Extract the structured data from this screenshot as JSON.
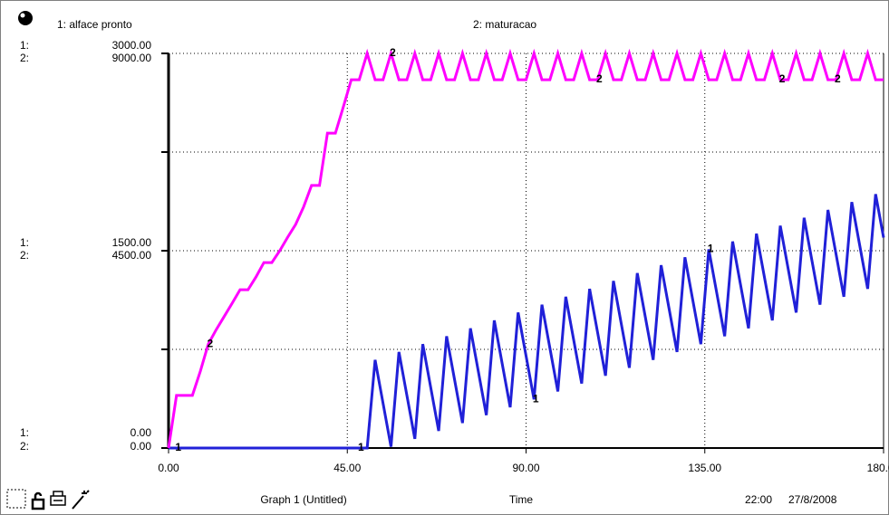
{
  "chart_data": {
    "type": "line",
    "x": [
      0,
      2,
      4,
      6,
      8,
      10,
      12,
      14,
      16,
      18,
      20,
      22,
      24,
      26,
      28,
      30,
      32,
      34,
      36,
      38,
      40,
      42,
      44,
      46,
      48,
      50,
      52,
      54,
      56,
      58,
      60,
      62,
      64,
      66,
      68,
      70,
      72,
      74,
      76,
      78,
      80,
      82,
      84,
      86,
      88,
      90,
      92,
      94,
      96,
      98,
      100,
      102,
      104,
      106,
      108,
      110,
      112,
      114,
      116,
      118,
      120,
      122,
      124,
      126,
      128,
      130,
      132,
      134,
      136,
      138,
      140,
      142,
      144,
      146,
      148,
      150,
      152,
      154,
      156,
      158,
      160,
      162,
      164,
      166,
      168,
      170,
      172,
      174,
      176,
      178,
      180
    ],
    "series": [
      {
        "name": "1: alface pronto",
        "marker": "1",
        "color": "#2020d8",
        "axis": "y",
        "values": [
          0,
          0,
          0,
          0,
          0,
          0,
          0,
          0,
          0,
          0,
          0,
          0,
          0,
          0,
          0,
          0,
          0,
          0,
          0,
          0,
          0,
          0,
          0,
          0,
          0,
          0,
          670,
          340,
          10,
          730,
          400,
          70,
          790,
          460,
          130,
          850,
          520,
          190,
          910,
          580,
          250,
          970,
          640,
          310,
          1030,
          700,
          370,
          1090,
          760,
          430,
          1150,
          820,
          490,
          1210,
          880,
          550,
          1270,
          940,
          610,
          1330,
          1000,
          670,
          1390,
          1060,
          730,
          1450,
          1120,
          790,
          1510,
          1180,
          850,
          1570,
          1240,
          910,
          1630,
          1300,
          970,
          1690,
          1360,
          1030,
          1750,
          1420,
          1090,
          1810,
          1480,
          1150,
          1870,
          1540,
          1210,
          1930,
          1600
        ]
      },
      {
        "name": "2: maturacao",
        "marker": "2",
        "color": "#ff00ff",
        "axis": "y2",
        "values": [
          0,
          1200,
          1200,
          1200,
          1750,
          2370,
          2700,
          3000,
          3300,
          3610,
          3610,
          3900,
          4230,
          4230,
          4500,
          4810,
          5100,
          5500,
          5990,
          5990,
          7180,
          7180,
          7780,
          8400,
          8400,
          9000,
          8400,
          8400,
          9000,
          8400,
          8400,
          9000,
          8400,
          8400,
          9000,
          8400,
          8400,
          9000,
          8400,
          8400,
          9000,
          8400,
          8400,
          9000,
          8400,
          8400,
          9000,
          8400,
          8400,
          9000,
          8400,
          8400,
          9000,
          8400,
          8400,
          9000,
          8400,
          8400,
          9000,
          8400,
          8400,
          9000,
          8400,
          8400,
          9000,
          8400,
          8400,
          9000,
          8400,
          8400,
          9000,
          8400,
          8400,
          9000,
          8400,
          8400,
          9000,
          8400,
          8400,
          9000,
          8400,
          8400,
          9000,
          8400,
          8400,
          9000,
          8400,
          8400,
          9000,
          8400,
          8400
        ]
      }
    ],
    "axis_prefix": "1:",
    "axis2_prefix": "2:",
    "xlim": [
      0,
      180
    ],
    "xticks": [
      {
        "value": 0,
        "label": "0.00"
      },
      {
        "value": 45,
        "label": "45.00"
      },
      {
        "value": 90,
        "label": "90.00"
      },
      {
        "value": 135,
        "label": "135.00"
      },
      {
        "value": 180,
        "label": "180.00"
      }
    ],
    "ylim": [
      0,
      3000
    ],
    "yticks": [
      {
        "value": 0,
        "label": "0.00"
      },
      {
        "value": 1500,
        "label": "1500.00"
      },
      {
        "value": 3000,
        "label": "3000.00"
      }
    ],
    "yminorticks": [
      750,
      2250
    ],
    "y2lim": [
      0,
      9000
    ],
    "y2ticks": [
      {
        "value": 0,
        "label": "0.00"
      },
      {
        "value": 4500,
        "label": "4500.00"
      },
      {
        "value": 9000,
        "label": "9000.00"
      }
    ],
    "grid": true,
    "footer": {
      "graph": "Graph 1 (Untitled)",
      "xlabel": "Time",
      "time": "22:00",
      "date": "27/8/2008"
    }
  }
}
